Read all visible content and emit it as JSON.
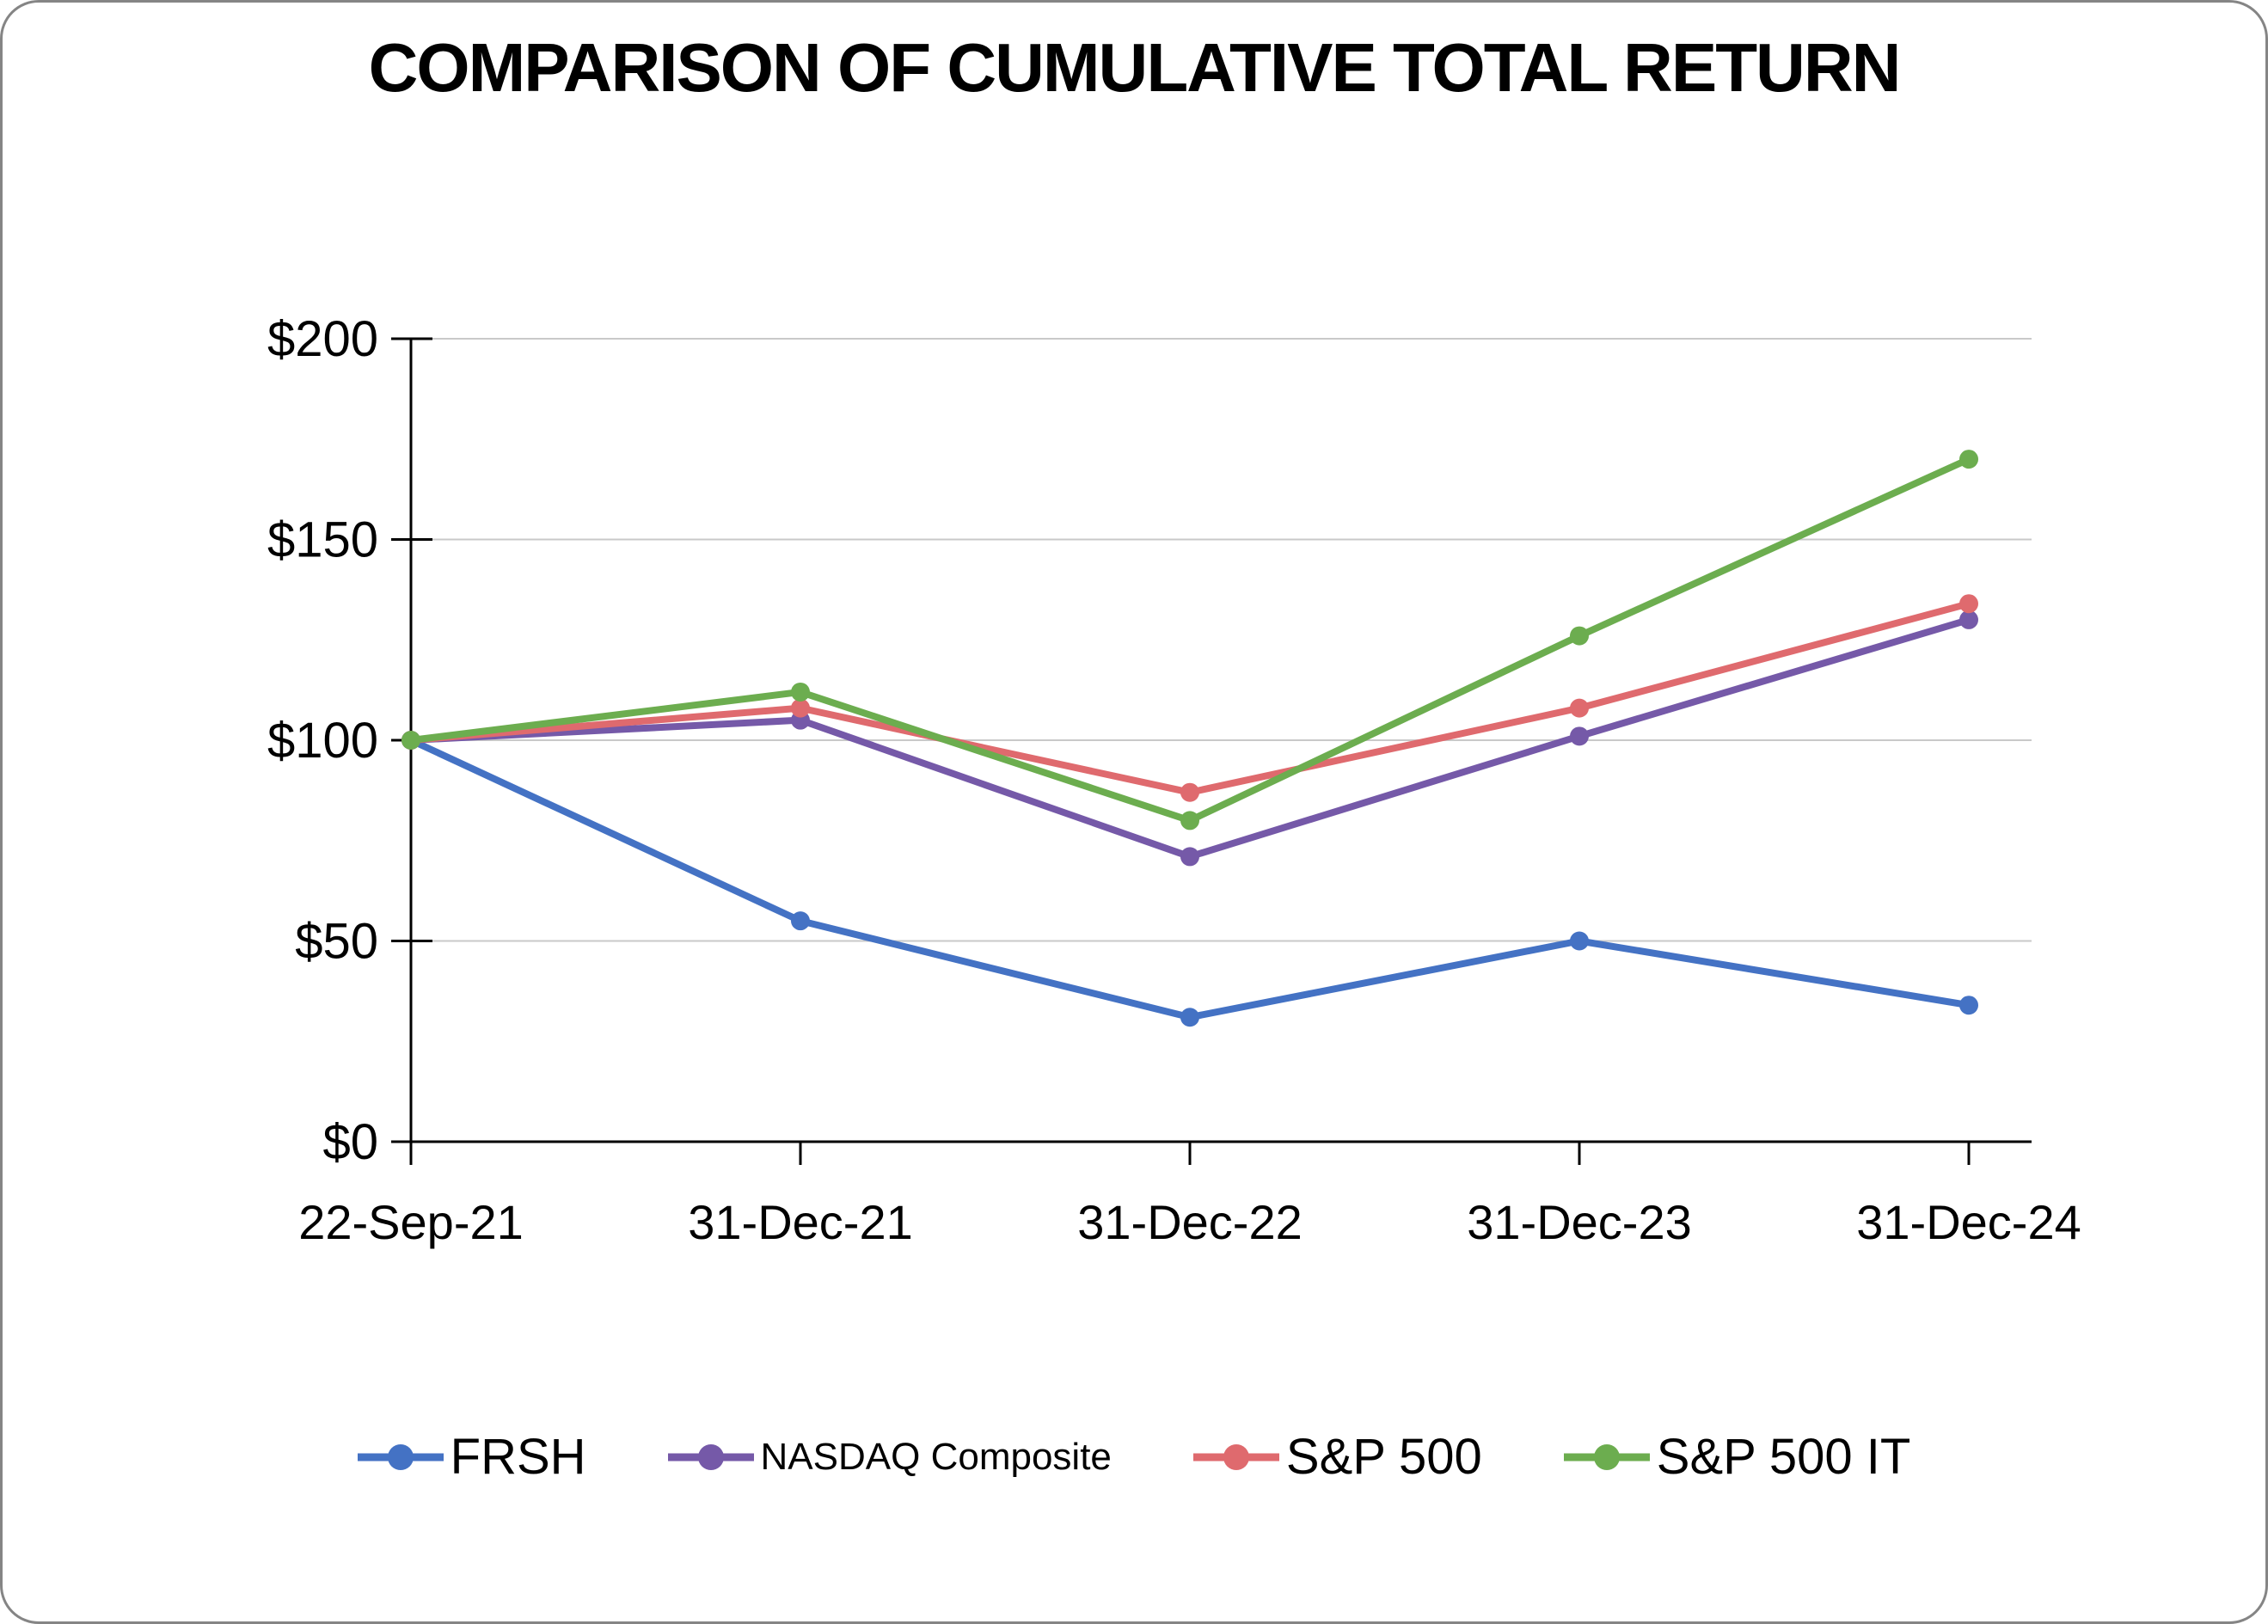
{
  "title": "COMPARISON OF CUMULATIVE TOTAL RETURN",
  "chart_data": {
    "type": "line",
    "title": "COMPARISON OF CUMULATIVE TOTAL RETURN",
    "x": [
      "22-Sep-21",
      "31-Dec-21",
      "31-Dec-22",
      "31-Dec-23",
      "31-Dec-24"
    ],
    "series": [
      {
        "name": "FRSH",
        "color": "#4472C4",
        "values": [
          100,
          55,
          31,
          50,
          34
        ]
      },
      {
        "name": "NASDAQ Composite",
        "color": "#7559A8",
        "values": [
          100,
          105,
          71,
          101,
          130
        ]
      },
      {
        "name": "S&P 500",
        "color": "#DF6A6E",
        "values": [
          100,
          108,
          87,
          108,
          134
        ]
      },
      {
        "name": "S&P 500 IT",
        "color": "#6CAD4F",
        "values": [
          100,
          112,
          80,
          126,
          170
        ]
      }
    ],
    "ylim": [
      0,
      200
    ],
    "yticks": [
      0,
      50,
      100,
      150,
      200
    ],
    "ytick_labels": [
      "$0",
      "$50",
      "$100",
      "$150",
      "$200"
    ],
    "xlabel": "",
    "ylabel": "",
    "grid": "horizontal",
    "legend_position": "bottom",
    "marker": "circle"
  },
  "colors": {
    "gridline": "#C9C9C9",
    "axis": "#000000",
    "card_border": "#858585",
    "background": "#FFFFFF"
  }
}
